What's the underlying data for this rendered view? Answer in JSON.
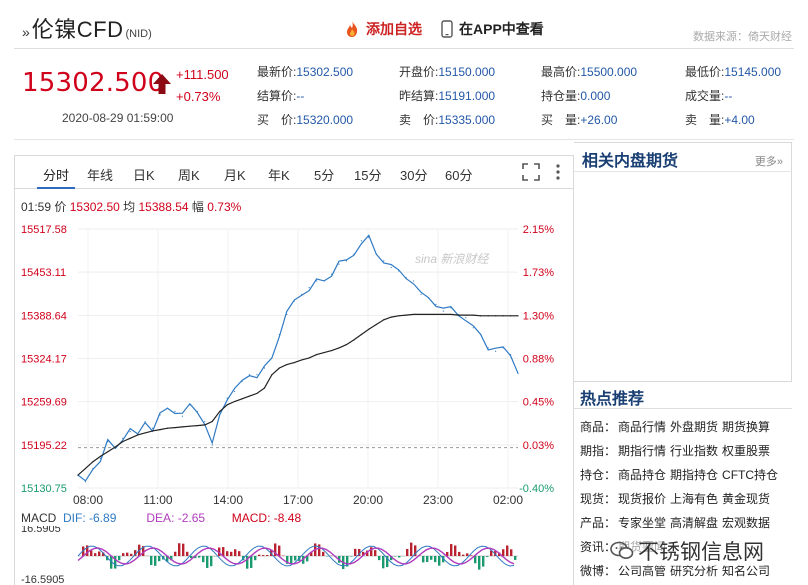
{
  "header": {
    "title_mark": "»",
    "title": "伦镍CFD",
    "title_sub": "(NID)",
    "add_favorite": "添加自选",
    "view_in_app": "在APP中查看",
    "data_source": "数据来源：倚天财经"
  },
  "quote": {
    "price": "15302.500",
    "change": "+111.500",
    "change_pct": "+0.73%",
    "time": "2020-08-29 01:59:00",
    "fields": [
      {
        "label": "最新价:",
        "value": "15302.500"
      },
      {
        "label": "开盘价:",
        "value": "15150.000"
      },
      {
        "label": "最高价:",
        "value": "15500.000"
      },
      {
        "label": "最低价:",
        "value": "15145.000"
      },
      {
        "label": "结算价:",
        "value": "--"
      },
      {
        "label": "昨结算:",
        "value": "15191.000"
      },
      {
        "label": "持仓量:",
        "value": "0.000"
      },
      {
        "label": "成交量:",
        "value": "--"
      },
      {
        "label": "买　价:",
        "value": "15320.000"
      },
      {
        "label": "卖　价:",
        "value": "15335.000"
      },
      {
        "label": "买　量:",
        "value": "+26.00"
      },
      {
        "label": "卖　量:",
        "value": "+4.00"
      }
    ]
  },
  "tabs": [
    "分时",
    "年线",
    "日K",
    "周K",
    "月K",
    "年K",
    "5分",
    "15分",
    "30分",
    "60分"
  ],
  "info_line": {
    "time": "01:59",
    "price_label": "价",
    "price": "15302.50",
    "avg_label": "均",
    "avg": "15388.54",
    "amp_label": "幅",
    "amp": "0.73%"
  },
  "watermark": "sina 新浪财经",
  "chart_data": {
    "type": "line",
    "title": "",
    "y_ticks": [
      "15517.58",
      "15453.11",
      "15388.64",
      "15324.17",
      "15259.69",
      "15195.22",
      "15130.75"
    ],
    "y_right_ticks": [
      "2.15%",
      "1.73%",
      "1.30%",
      "0.88%",
      "0.45%",
      "0.03%",
      "-0.40%"
    ],
    "x_ticks": [
      "08:00",
      "11:00",
      "14:00",
      "17:00",
      "20:00",
      "23:00",
      "02:00"
    ],
    "ylim": [
      15130.75,
      15517.58
    ],
    "prev_settle": 15191.0,
    "series": [
      {
        "values": [
          15150,
          15140,
          15160,
          15175,
          15200,
          15190,
          15205,
          15215,
          15210,
          15230,
          15220,
          15240,
          15250,
          15245,
          15238,
          15255,
          15245,
          15230,
          15195,
          15240,
          15265,
          15275,
          15290,
          15300,
          15300,
          15310,
          15325,
          15360,
          15390,
          15410,
          15420,
          15430,
          15440,
          15440,
          15450,
          15465,
          15470,
          15480,
          15500,
          15505,
          15480,
          15470,
          15460,
          15455,
          15445,
          15440,
          15420,
          15415,
          15405,
          15395,
          15400,
          15390,
          15385,
          15370,
          15360,
          15340,
          15335,
          15340,
          15330,
          15302
        ]
      },
      {
        "values": [
          15150,
          15160,
          15170,
          15178,
          15185,
          15192,
          15200,
          15205,
          15210,
          15213,
          15216,
          15218,
          15220,
          15221,
          15222,
          15223,
          15224,
          15225,
          15230,
          15245,
          15255,
          15260,
          15264,
          15268,
          15272,
          15280,
          15300,
          15310,
          15315,
          15318,
          15322,
          15325,
          15330,
          15333,
          15336,
          15340,
          15345,
          15352,
          15360,
          15368,
          15375,
          15382,
          15386,
          15388,
          15389,
          15390,
          15390,
          15390,
          15390,
          15390,
          15390,
          15389,
          15389,
          15389,
          15388,
          15388,
          15388,
          15388,
          15388,
          15388
        ]
      }
    ],
    "colors": {
      "price": "#2f7ac4",
      "avg": "#222222",
      "up": "#d0021b",
      "down": "#1a9a6e"
    }
  },
  "macd": {
    "label": "MACD",
    "dif_label": "DIF: -6.89",
    "dea_label": "DEA: -2.65",
    "macd_label": "MACD: -8.48",
    "y_top": "16.5905",
    "y_bottom": "-16.5905"
  },
  "sidebar": {
    "related_title": "相关内盘期货",
    "more": "更多»",
    "hot_title": "热点推荐",
    "hot_rows": [
      {
        "key": "商品：",
        "links": [
          "商品行情",
          "外盘期货",
          "期货换算"
        ]
      },
      {
        "key": "期指：",
        "links": [
          "期指行情",
          "行业指数",
          "权重股票"
        ]
      },
      {
        "key": "持仓：",
        "links": [
          "商品持仓",
          "期指持仓",
          "CFTC持仓"
        ]
      },
      {
        "key": "现货：",
        "links": [
          "现货报价",
          "上海有色",
          "黄金现货"
        ]
      },
      {
        "key": "产品：",
        "links": [
          "专家坐堂",
          "高清解盘",
          "宏观数据"
        ]
      },
      {
        "key": "资讯：",
        "links": [
          "期货要闻"
        ]
      },
      {
        "key": "微博：",
        "links": [
          "公司高管",
          "研究分析",
          "知名公司"
        ]
      }
    ]
  },
  "wechat_watermark": "不锈钢信息网"
}
